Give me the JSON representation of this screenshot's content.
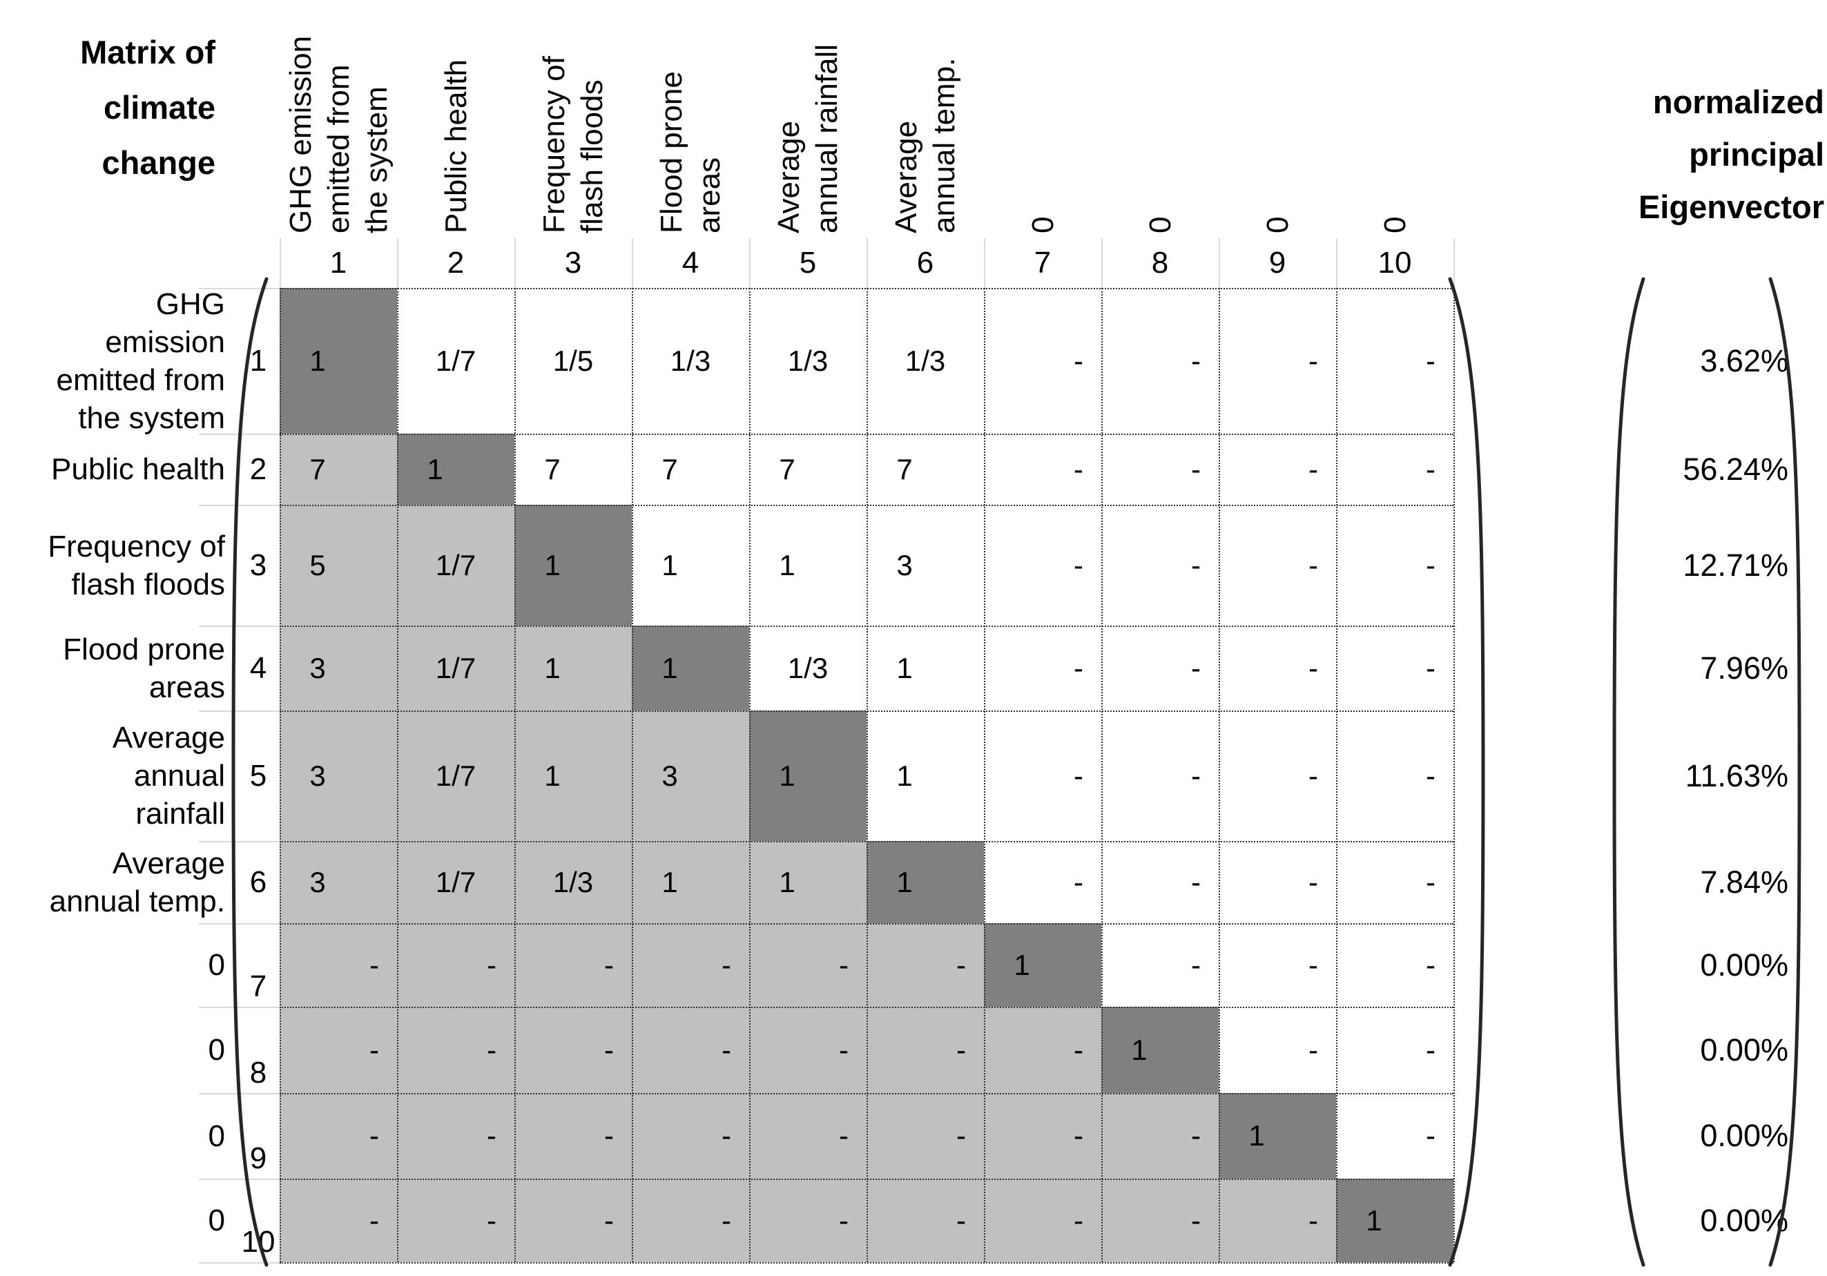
{
  "title": {
    "lines": [
      "Matrix of",
      "climate",
      "change"
    ]
  },
  "eigenvector_header": {
    "lines": [
      "normalized",
      "principal",
      "Eigenvector"
    ]
  },
  "columns": [
    {
      "num": "1",
      "label_lines": [
        "GHG emission",
        "emitted from",
        "the system"
      ]
    },
    {
      "num": "2",
      "label_lines": [
        "Public health"
      ]
    },
    {
      "num": "3",
      "label_lines": [
        "Frequency of",
        "flash floods"
      ]
    },
    {
      "num": "4",
      "label_lines": [
        "Flood prone",
        "areas"
      ]
    },
    {
      "num": "5",
      "label_lines": [
        "Average",
        "annual rainfall"
      ]
    },
    {
      "num": "6",
      "label_lines": [
        "Average",
        "annual temp."
      ]
    },
    {
      "num": "7",
      "label_lines": [
        "0"
      ]
    },
    {
      "num": "8",
      "label_lines": [
        "0"
      ]
    },
    {
      "num": "9",
      "label_lines": [
        "0"
      ]
    },
    {
      "num": "10",
      "label_lines": [
        "0"
      ]
    }
  ],
  "rows": [
    {
      "num": "1",
      "label_lines": [
        "GHG",
        "emission",
        "emitted from",
        "the system"
      ],
      "cells": [
        "1",
        "1/7",
        "1/5",
        "1/3",
        "1/3",
        "1/3",
        "-",
        "-",
        "-",
        "-"
      ],
      "eigenvector": "3.62%"
    },
    {
      "num": "2",
      "label_lines": [
        "Public health"
      ],
      "cells": [
        "7",
        "1",
        "7",
        "7",
        "7",
        "7",
        "-",
        "-",
        "-",
        "-"
      ],
      "eigenvector": "56.24%"
    },
    {
      "num": "3",
      "label_lines": [
        "Frequency of",
        "flash floods"
      ],
      "cells": [
        "5",
        "1/7",
        "1",
        "1",
        "1",
        "3",
        "-",
        "-",
        "-",
        "-"
      ],
      "eigenvector": "12.71%"
    },
    {
      "num": "4",
      "label_lines": [
        "Flood prone",
        "areas"
      ],
      "cells": [
        "3",
        "1/7",
        "1",
        "1",
        "1/3",
        "1",
        "-",
        "-",
        "-",
        "-"
      ],
      "eigenvector": "7.96%"
    },
    {
      "num": "5",
      "label_lines": [
        "Average",
        "annual",
        "rainfall"
      ],
      "cells": [
        "3",
        "1/7",
        "1",
        "3",
        "1",
        "1",
        "-",
        "-",
        "-",
        "-"
      ],
      "eigenvector": "11.63%"
    },
    {
      "num": "6",
      "label_lines": [
        "Average",
        "annual temp."
      ],
      "cells": [
        "3",
        "1/7",
        "1/3",
        "1",
        "1",
        "1",
        "-",
        "-",
        "-",
        "-"
      ],
      "eigenvector": "7.84%"
    },
    {
      "num": "7",
      "label_lines": [
        "0"
      ],
      "cells": [
        "-",
        "-",
        "-",
        "-",
        "-",
        "-",
        "1",
        "-",
        "-",
        "-"
      ],
      "eigenvector": "0.00%"
    },
    {
      "num": "8",
      "label_lines": [
        "0"
      ],
      "cells": [
        "-",
        "-",
        "-",
        "-",
        "-",
        "-",
        "-",
        "1",
        "-",
        "-"
      ],
      "eigenvector": "0.00%"
    },
    {
      "num": "9",
      "label_lines": [
        "0"
      ],
      "cells": [
        "-",
        "-",
        "-",
        "-",
        "-",
        "-",
        "-",
        "-",
        "1",
        "-"
      ],
      "eigenvector": "0.00%"
    },
    {
      "num": "10",
      "label_lines": [
        "0"
      ],
      "cells": [
        "-",
        "-",
        "-",
        "-",
        "-",
        "-",
        "-",
        "-",
        "-",
        "1"
      ],
      "eigenvector": "0.00%"
    }
  ],
  "colors": {
    "background": "#ffffff",
    "diagonal_cell": "#808080",
    "lower_triangle_cell": "#c0c0c0",
    "upper_triangle_cell": "#ffffff",
    "dotted_grid": "#2e2e2e",
    "light_grid": "#d9d9d9",
    "bracket": "#262626",
    "text": "#000000"
  },
  "chart_data": {
    "type": "table",
    "title": "Matrix of climate change",
    "legend_right": "normalized principal Eigenvector",
    "criteria": [
      "GHG emission emitted from the system",
      "Public health",
      "Frequency of flash floods",
      "Flood prone areas",
      "Average annual rainfall",
      "Average annual temp.",
      "0",
      "0",
      "0",
      "0"
    ],
    "column_numbers": [
      1,
      2,
      3,
      4,
      5,
      6,
      7,
      8,
      9,
      10
    ],
    "matrix": [
      [
        "1",
        "1/7",
        "1/5",
        "1/3",
        "1/3",
        "1/3",
        "-",
        "-",
        "-",
        "-"
      ],
      [
        "7",
        "1",
        "7",
        "7",
        "7",
        "7",
        "-",
        "-",
        "-",
        "-"
      ],
      [
        "5",
        "1/7",
        "1",
        "1",
        "1",
        "3",
        "-",
        "-",
        "-",
        "-"
      ],
      [
        "3",
        "1/7",
        "1",
        "1",
        "1/3",
        "1",
        "-",
        "-",
        "-",
        "-"
      ],
      [
        "3",
        "1/7",
        "1",
        "3",
        "1",
        "1",
        "-",
        "-",
        "-",
        "-"
      ],
      [
        "3",
        "1/7",
        "1/3",
        "1",
        "1",
        "1",
        "-",
        "-",
        "-",
        "-"
      ],
      [
        "-",
        "-",
        "-",
        "-",
        "-",
        "-",
        "1",
        "-",
        "-",
        "-"
      ],
      [
        "-",
        "-",
        "-",
        "-",
        "-",
        "-",
        "-",
        "1",
        "-",
        "-"
      ],
      [
        "-",
        "-",
        "-",
        "-",
        "-",
        "-",
        "-",
        "-",
        "1",
        "-"
      ],
      [
        "-",
        "-",
        "-",
        "-",
        "-",
        "-",
        "-",
        "-",
        "-",
        "1"
      ]
    ],
    "normalized_principal_eigenvector": [
      "3.62%",
      "56.24%",
      "12.71%",
      "7.96%",
      "11.63%",
      "7.84%",
      "0.00%",
      "0.00%",
      "0.00%",
      "0.00%"
    ],
    "layout_hints": {
      "diagonal_shaded": true,
      "lower_triangle_shaded": true,
      "grid": "dotted",
      "matrix_wrapped_in_parentheses": true
    }
  }
}
